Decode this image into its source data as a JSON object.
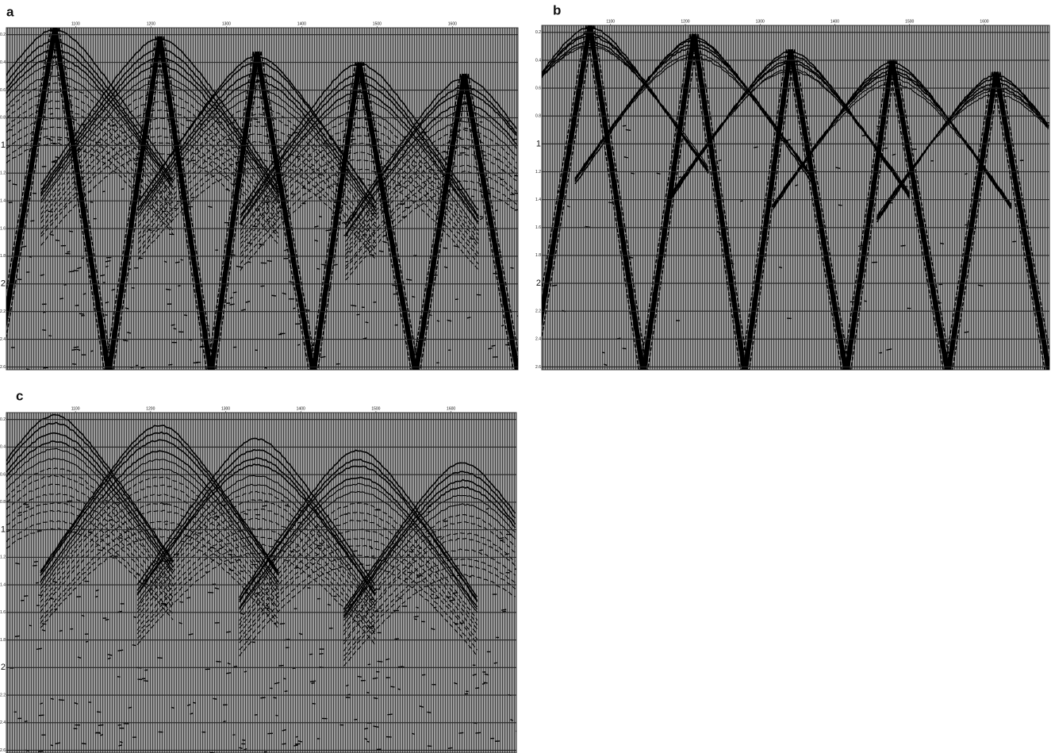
{
  "panels": [
    {
      "label": "a",
      "xlim": [
        1008,
        1687
      ],
      "xticks": [
        1100,
        1200,
        1300,
        1400,
        1500,
        1600
      ],
      "ylim": [
        0.15,
        2.62
      ],
      "yticks": [
        0.2,
        0.4,
        0.6,
        0.8,
        1,
        1.2,
        1.4,
        1.6,
        1.8,
        2,
        2.2,
        2.4,
        2.6
      ]
    },
    {
      "label": "b",
      "xlim": [
        1008,
        1687
      ],
      "xticks": [
        1100,
        1200,
        1300,
        1400,
        1500,
        1600
      ],
      "ylim": [
        0.15,
        2.62
      ],
      "yticks": [
        0.2,
        0.4,
        0.6,
        0.8,
        1,
        1.2,
        1.4,
        1.6,
        1.8,
        2,
        2.2,
        2.4,
        2.6
      ]
    },
    {
      "label": "c",
      "xlim": [
        1008,
        1687
      ],
      "xticks": [
        1100,
        1200,
        1300,
        1400,
        1500,
        1600
      ],
      "ylim": [
        0.15,
        2.62
      ],
      "yticks": [
        0.2,
        0.4,
        0.6,
        0.8,
        1,
        1.2,
        1.4,
        1.6,
        1.8,
        2,
        2.2,
        2.4,
        2.6
      ]
    }
  ]
}
